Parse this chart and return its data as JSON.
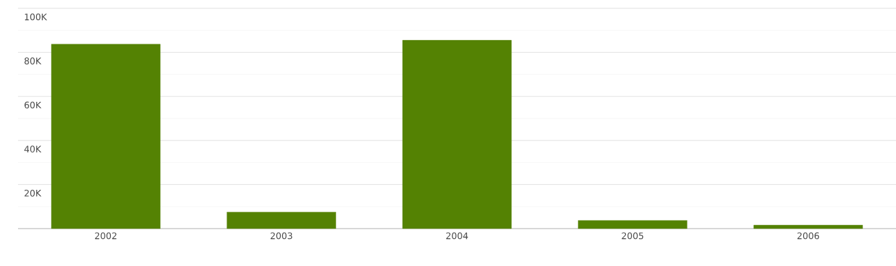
{
  "chart_data": {
    "type": "bar",
    "categories": [
      "2002",
      "2003",
      "2004",
      "2005",
      "2006"
    ],
    "values": [
      83700,
      7500,
      85500,
      3700,
      1600
    ],
    "color": "#548203",
    "ylim": [
      0,
      100000
    ],
    "yticks": [
      {
        "value": 10000,
        "label": null
      },
      {
        "value": 20000,
        "label": "20K"
      },
      {
        "value": 30000,
        "label": null
      },
      {
        "value": 40000,
        "label": "40K"
      },
      {
        "value": 50000,
        "label": null
      },
      {
        "value": 60000,
        "label": "60K"
      },
      {
        "value": 70000,
        "label": null
      },
      {
        "value": 80000,
        "label": "80K"
      },
      {
        "value": 90000,
        "label": null
      },
      {
        "value": 100000,
        "label": "100K"
      }
    ],
    "grid": "y"
  }
}
